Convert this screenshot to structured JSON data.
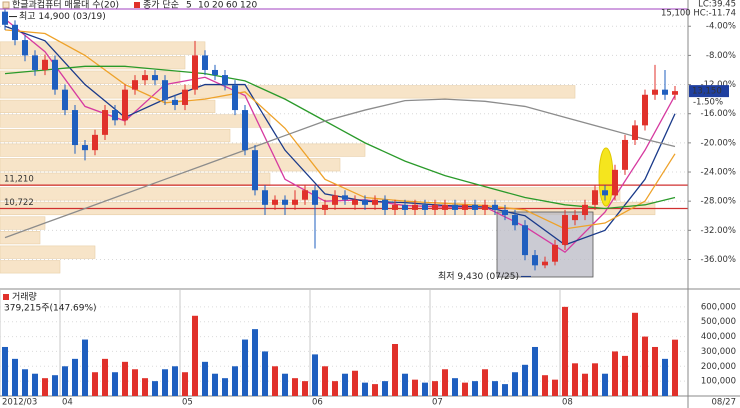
{
  "chart_data": {
    "type": "candlestick",
    "title": "한글과컴퓨터 매물대 수(20)",
    "legend_prefix": "종가 단순",
    "lc_label": "LC:39.45",
    "hc_label": "15,100 HC:-11.74",
    "categories": [
      "2012/03",
      null,
      null,
      null,
      null,
      null,
      "04",
      null,
      null,
      null,
      null,
      null,
      null,
      null,
      null,
      null,
      null,
      null,
      "05",
      null,
      null,
      null,
      null,
      null,
      null,
      null,
      null,
      null,
      null,
      null,
      null,
      "06",
      null,
      null,
      null,
      null,
      null,
      null,
      null,
      null,
      null,
      null,
      null,
      "07",
      null,
      null,
      null,
      null,
      null,
      null,
      null,
      null,
      null,
      null,
      null,
      null,
      "08",
      null,
      null,
      null,
      null,
      null,
      null,
      null,
      null,
      null,
      null,
      null
    ],
    "last_date": "08/27",
    "open": [
      -2.0,
      -3.8,
      -5.9,
      -8.0,
      -10.0,
      -8.6,
      -12.7,
      -15.5,
      -20.3,
      -21.0,
      -18.9,
      -15.5,
      -16.9,
      -12.7,
      -11.4,
      -10.7,
      -11.4,
      -14.1,
      -14.8,
      -12.7,
      -8.0,
      -10.0,
      -10.7,
      -12.1,
      -15.5,
      -21.0,
      -26.5,
      -28.5,
      -27.8,
      -28.5,
      -27.8,
      -26.5,
      -29.2,
      -28.5,
      -27.2,
      -28.5,
      -27.8,
      -28.5,
      -27.8,
      -29.2,
      -28.5,
      -29.2,
      -28.5,
      -29.2,
      -29.2,
      -28.5,
      -29.2,
      -28.5,
      -29.2,
      -28.5,
      -29.2,
      -29.9,
      -31.3,
      -35.4,
      -36.8,
      -36.3,
      -34.0,
      -30.6,
      -29.9,
      -28.5,
      -26.5,
      -27.2,
      -23.7,
      -19.6,
      -17.6,
      -13.4,
      -12.7,
      -13.4
    ],
    "high": [
      -1.3,
      -3.2,
      -5.2,
      -7.3,
      -7.9,
      -8.0,
      -12.0,
      -14.8,
      -19.6,
      -18.2,
      -14.8,
      -14.8,
      -12.0,
      -10.7,
      -10.0,
      -10.0,
      -10.7,
      -13.4,
      -12.0,
      -6.0,
      -7.3,
      -9.3,
      -10.0,
      -11.4,
      -14.8,
      -20.3,
      -25.8,
      -27.2,
      -27.2,
      -26.5,
      -25.8,
      -25.8,
      -27.8,
      -26.5,
      -26.5,
      -27.2,
      -27.2,
      -27.2,
      -27.2,
      -27.8,
      -27.8,
      -27.8,
      -27.8,
      -27.8,
      -27.8,
      -27.8,
      -27.8,
      -27.8,
      -27.8,
      -27.8,
      -28.5,
      -29.2,
      -30.6,
      -34.7,
      -35.6,
      -33.3,
      -29.2,
      -29.2,
      -27.8,
      -25.8,
      -25.8,
      -23.0,
      -18.9,
      -16.9,
      -12.7,
      -9.3,
      -10.0,
      -12.2
    ],
    "low": [
      -4.5,
      -6.6,
      -8.8,
      -10.8,
      -10.7,
      -13.4,
      -16.2,
      -21.5,
      -22.4,
      -21.7,
      -19.6,
      -17.6,
      -17.6,
      -13.4,
      -12.1,
      -12.1,
      -14.8,
      -15.5,
      -15.5,
      -13.4,
      -10.7,
      -11.4,
      -12.8,
      -16.2,
      -21.7,
      -27.2,
      -29.9,
      -29.2,
      -29.9,
      -29.2,
      -28.5,
      -34.5,
      -29.9,
      -29.2,
      -28.5,
      -29.2,
      -29.2,
      -29.2,
      -29.9,
      -29.9,
      -29.9,
      -29.9,
      -29.9,
      -29.9,
      -29.9,
      -29.9,
      -29.9,
      -29.9,
      -29.9,
      -29.9,
      -30.6,
      -32.0,
      -36.1,
      -37.5,
      -37.2,
      -36.8,
      -34.7,
      -31.3,
      -30.6,
      -29.2,
      -27.9,
      -27.9,
      -24.4,
      -20.3,
      -18.3,
      -14.1,
      -14.1,
      -14.1
    ],
    "close": [
      -3.8,
      -5.9,
      -8.0,
      -10.0,
      -8.6,
      -12.7,
      -15.5,
      -20.3,
      -21.0,
      -18.9,
      -15.5,
      -16.9,
      -12.7,
      -11.4,
      -10.7,
      -11.4,
      -14.1,
      -14.8,
      -12.7,
      -8.0,
      -10.0,
      -10.7,
      -12.1,
      -15.5,
      -21.0,
      -26.5,
      -28.5,
      -27.8,
      -28.5,
      -27.8,
      -26.5,
      -28.5,
      -28.5,
      -27.2,
      -27.8,
      -27.8,
      -28.5,
      -27.8,
      -29.2,
      -28.5,
      -29.2,
      -28.5,
      -29.2,
      -28.5,
      -28.5,
      -29.2,
      -28.5,
      -29.2,
      -28.5,
      -29.2,
      -29.9,
      -31.3,
      -35.4,
      -36.8,
      -36.3,
      -34.0,
      -29.9,
      -29.9,
      -28.5,
      -26.5,
      -27.2,
      -23.7,
      -19.6,
      -17.6,
      -13.4,
      -12.7,
      -13.4,
      -12.9
    ],
    "up_color": "#e0312b",
    "down_color": "#1f5fbf",
    "ylim": [
      -39.5,
      -0.4
    ],
    "yticks": [
      {
        "value": -4,
        "label": "-4.00%"
      },
      {
        "value": -8,
        "label": "-8.00%"
      },
      {
        "value": -12,
        "label": "-12.00%"
      },
      {
        "value": -16,
        "label": "-16.00%"
      },
      {
        "value": -20,
        "label": "-20.00%"
      },
      {
        "value": -24,
        "label": "-24.00%"
      },
      {
        "value": -28,
        "label": "-28.00%"
      },
      {
        "value": -32,
        "label": "-32.00%"
      },
      {
        "value": -36,
        "label": "-36.00%"
      }
    ],
    "current_label": "13,150",
    "current_change": "-1.50%",
    "high_note": "최고 14,900 (03/19)",
    "low_note": "최저 9,430 (07/25)",
    "levels": [
      {
        "label": "11,210",
        "value": -25.8
      },
      {
        "label": "10,722",
        "value": -29.0
      }
    ],
    "level_color": "#d03030",
    "profile": {
      "bins": [
        -6,
        -8,
        -10,
        -12,
        -14,
        -16,
        -18,
        -20,
        -22,
        -24,
        -26,
        -28,
        -30,
        -32,
        -34,
        -36,
        -38
      ],
      "values": [
        205,
        185,
        180,
        575,
        215,
        270,
        230,
        365,
        340,
        270,
        620,
        655,
        45,
        40,
        95,
        60
      ],
      "color": "#f7e4c8"
    },
    "moving_averages": [
      {
        "name": "5",
        "color": "#d63aa0",
        "x": [
          0,
          4,
          8,
          12,
          16,
          20,
          24,
          28,
          32,
          36,
          40,
          44,
          48,
          52,
          56,
          60,
          64,
          67
        ],
        "values": [
          -3,
          -7.5,
          -15,
          -17,
          -12,
          -11,
          -13.5,
          -25,
          -28,
          -27.8,
          -28.6,
          -28.8,
          -28.8,
          -31.5,
          -35,
          -29.5,
          -21,
          -13.5
        ]
      },
      {
        "name": "10",
        "color": "#1a3a8a",
        "x": [
          0,
          4,
          8,
          12,
          16,
          20,
          24,
          28,
          32,
          36,
          40,
          44,
          48,
          52,
          56,
          60,
          64,
          67
        ],
        "values": [
          -4,
          -6,
          -12,
          -16.5,
          -14,
          -12,
          -12,
          -21,
          -27,
          -28,
          -28.2,
          -28.6,
          -28.8,
          -30,
          -34,
          -32,
          -25,
          -16
        ]
      },
      {
        "name": "20",
        "color": "#eea22a",
        "x": [
          0,
          4,
          8,
          12,
          16,
          20,
          24,
          28,
          32,
          36,
          40,
          44,
          48,
          52,
          56,
          60,
          64,
          67
        ],
        "values": [
          -4.5,
          -5,
          -8,
          -12,
          -14.5,
          -14,
          -13,
          -18,
          -25,
          -27.5,
          -28,
          -28.3,
          -28.6,
          -29.2,
          -31.8,
          -31,
          -28,
          -21.5
        ]
      },
      {
        "name": "60",
        "color": "#2a9a2a",
        "x": [
          0,
          4,
          8,
          12,
          16,
          20,
          24,
          28,
          32,
          36,
          40,
          44,
          48,
          52,
          56,
          60,
          64,
          67
        ],
        "values": [
          -10.5,
          -10,
          -9.5,
          -9.5,
          -10,
          -10.5,
          -11.5,
          -14,
          -17,
          -20,
          -22.5,
          -24.5,
          -26,
          -27.5,
          -28.5,
          -29,
          -28.5,
          -27.5
        ]
      },
      {
        "name": "120",
        "color": "#8c8c8c",
        "x": [
          0,
          4,
          8,
          12,
          16,
          20,
          24,
          28,
          32,
          36,
          40,
          44,
          48,
          52,
          56,
          60,
          64,
          67
        ],
        "values": [
          -33,
          -31,
          -29,
          -27,
          -25,
          -23,
          -21,
          -19,
          -17,
          -15.5,
          -14.2,
          -14,
          -14.3,
          -15,
          -16.5,
          -18,
          -19.5,
          -20.5
        ]
      }
    ],
    "volume": {
      "title": "거래량",
      "note": "379,215주(147.69%)",
      "values": [
        330000,
        250000,
        180000,
        150000,
        120000,
        140000,
        200000,
        250000,
        380000,
        160000,
        250000,
        160000,
        230000,
        180000,
        120000,
        100000,
        180000,
        200000,
        160000,
        540000,
        230000,
        150000,
        120000,
        200000,
        380000,
        450000,
        300000,
        200000,
        150000,
        120000,
        100000,
        280000,
        200000,
        100000,
        150000,
        170000,
        90000,
        80000,
        100000,
        350000,
        150000,
        110000,
        90000,
        100000,
        180000,
        120000,
        90000,
        100000,
        180000,
        100000,
        80000,
        160000,
        210000,
        330000,
        140000,
        110000,
        600000,
        220000,
        150000,
        220000,
        150000,
        300000,
        270000,
        560000,
        400000,
        330000,
        250000,
        379215
      ],
      "ylim": [
        0,
        700000
      ],
      "yticks": [
        {
          "value": 100000,
          "label": "100,000"
        },
        {
          "value": 200000,
          "label": "200,000"
        },
        {
          "value": 300000,
          "label": "300,000"
        },
        {
          "value": 400000,
          "label": "400,000"
        },
        {
          "value": 500000,
          "label": "500,000"
        },
        {
          "value": 600000,
          "label": "600,000"
        }
      ]
    }
  }
}
